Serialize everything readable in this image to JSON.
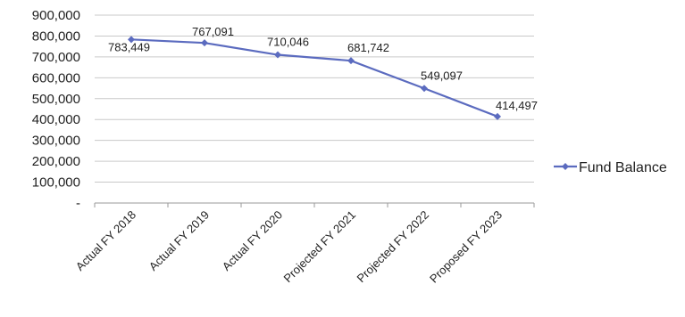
{
  "chart_data": {
    "type": "line",
    "categories": [
      "Actual FY 2018",
      "Actual FY 2019",
      "Actual FY 2020",
      "Projected FY 2021",
      "Projected FY 2022",
      "Proposed FY 2023"
    ],
    "series": [
      {
        "name": "Fund Balance",
        "values": [
          783449,
          767091,
          710046,
          681742,
          549097,
          414497
        ],
        "data_labels": [
          "783,449",
          "767,091",
          "710,046",
          "681,742",
          "549,097",
          "414,497"
        ],
        "color": "#5b6bbf"
      }
    ],
    "ylim": [
      0,
      900000
    ],
    "y_ticks": [
      0,
      100000,
      200000,
      300000,
      400000,
      500000,
      600000,
      700000,
      800000,
      900000
    ],
    "y_tick_labels": [
      "-",
      "100,000",
      "200,000",
      "300,000",
      "400,000",
      "500,000",
      "600,000",
      "700,000",
      "800,000",
      "900,000"
    ],
    "grid": true,
    "legend_position": "right",
    "title": "",
    "xlabel": "",
    "ylabel": ""
  }
}
